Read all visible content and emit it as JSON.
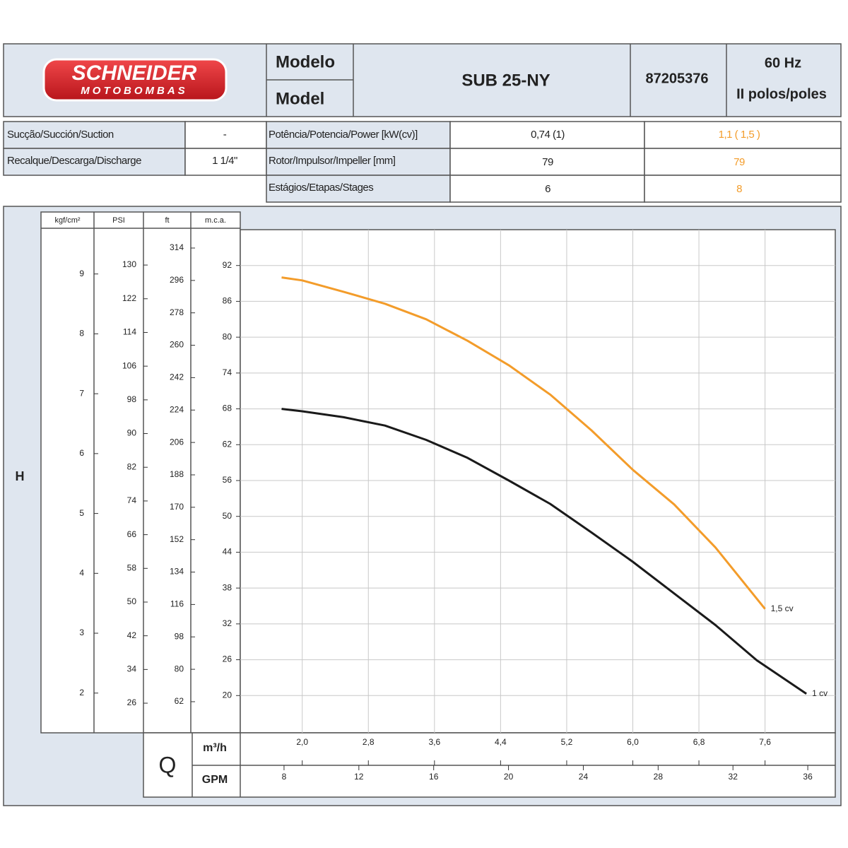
{
  "header": {
    "logo_top": "SCHNEIDER",
    "logo_bottom": "MOTOBOMBAS",
    "model_label_pt": "Modelo",
    "model_label_en": "Model",
    "model": "SUB 25-NY",
    "code": "87205376",
    "frequency": "60 Hz",
    "poles": "II polos/poles"
  },
  "specs": {
    "left": [
      [
        "Sucção/Succión/Suction",
        "-"
      ],
      [
        "Recalque/Descarga/Discharge",
        "1 1/4\""
      ]
    ],
    "right": [
      [
        "Potência/Potencia/Power [kW(cv)]",
        "0,74 (1)",
        "1,1 ( 1,5 )"
      ],
      [
        "Rotor/Impulsor/Impeller [mm]",
        "79",
        "79"
      ],
      [
        "Estágios/Etapas/Stages",
        "6",
        "8"
      ]
    ]
  },
  "chart_data": {
    "type": "line",
    "y_title": "H",
    "x_title": "Q",
    "xlabel": "m³/h",
    "xlim": [
      1.25,
      8.45
    ],
    "xticks": [
      {
        "value": 2.0,
        "label": "2,0"
      },
      {
        "value": 2.8,
        "label": "2,8"
      },
      {
        "value": 3.6,
        "label": "3,6"
      },
      {
        "value": 4.4,
        "label": "4,4"
      },
      {
        "value": 5.2,
        "label": "5,2"
      },
      {
        "value": 6.0,
        "label": "6,0"
      },
      {
        "value": 6.8,
        "label": "6,8"
      },
      {
        "value": 7.6,
        "label": "7,6"
      }
    ],
    "x2label": "GPM",
    "x2lim": [
      5.66,
      37.47
    ],
    "x2ticks": [
      8,
      12,
      16,
      20,
      24,
      28,
      32,
      36
    ],
    "ylabel": "m.c.a.",
    "ylim": [
      14,
      98
    ],
    "yticks": [
      20,
      26,
      32,
      38,
      44,
      50,
      56,
      62,
      68,
      74,
      80,
      86,
      92
    ],
    "extra_y_axes": [
      {
        "label": "kgf/cm²",
        "ylim": [
          1.36,
          9.74
        ],
        "yticks": [
          2,
          3,
          4,
          5,
          6,
          7,
          8,
          9
        ]
      },
      {
        "label": "PSI",
        "ylim": [
          19.3,
          138.4
        ],
        "yticks": [
          26,
          34,
          42,
          50,
          58,
          66,
          74,
          82,
          90,
          98,
          106,
          114,
          122,
          130
        ]
      },
      {
        "label": "ft",
        "ylim": [
          45.5,
          324.2
        ],
        "yticks": [
          62,
          80,
          98,
          116,
          134,
          152,
          170,
          188,
          206,
          224,
          242,
          260,
          278,
          296,
          314
        ]
      }
    ],
    "grid": true,
    "series": [
      {
        "name": "1,5 cv",
        "color": "#f39c2a",
        "x": [
          1.75,
          2.0,
          2.5,
          3.0,
          3.5,
          4.0,
          4.5,
          5.0,
          5.5,
          6.0,
          6.5,
          7.0,
          7.6
        ],
        "values": [
          90.0,
          89.5,
          87.6,
          85.6,
          83.0,
          79.4,
          75.3,
          70.4,
          64.4,
          57.8,
          52.0,
          44.8,
          34.5
        ]
      },
      {
        "name": "1 cv",
        "color": "#1a1a1a",
        "x": [
          1.75,
          2.0,
          2.5,
          3.0,
          3.5,
          4.0,
          4.5,
          5.0,
          5.5,
          6.0,
          6.5,
          7.0,
          7.5,
          8.1
        ],
        "values": [
          68.0,
          67.6,
          66.6,
          65.2,
          62.8,
          59.8,
          56.0,
          52.1,
          47.3,
          42.4,
          37.1,
          31.8,
          25.9,
          20.3
        ]
      }
    ]
  }
}
